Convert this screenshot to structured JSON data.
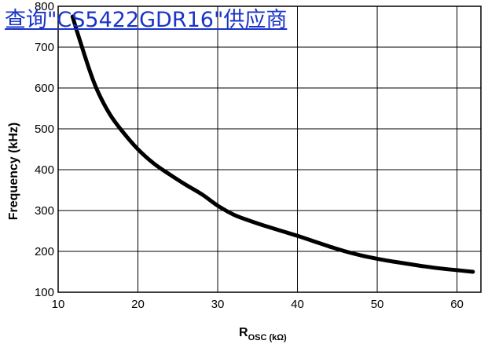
{
  "overlay": {
    "link_text": "查询\"CS5422GDR16\"供应商",
    "link_color": "#1a33c8"
  },
  "chart_data": {
    "type": "line",
    "xlabel_main": "R",
    "xlabel_sub": "OSC (kΩ)",
    "ylabel": "Frequency (kHz)",
    "xlim": [
      10,
      63
    ],
    "ylim": [
      100,
      800
    ],
    "xticks": [
      10,
      20,
      30,
      40,
      50,
      60
    ],
    "yticks": [
      100,
      200,
      300,
      400,
      500,
      600,
      700,
      800
    ],
    "grid": true,
    "series": [
      {
        "color": "#000000",
        "x": [
          11.8,
          12.5,
          14,
          15,
          16.5,
          18,
          20,
          22,
          24,
          26,
          28,
          30,
          32,
          34,
          36,
          38,
          40,
          42,
          44,
          46,
          48,
          50,
          52,
          54,
          56,
          58,
          60,
          62
        ],
        "y": [
          775,
          730,
          640,
          590,
          535,
          495,
          450,
          415,
          388,
          363,
          340,
          312,
          290,
          275,
          262,
          250,
          238,
          225,
          212,
          200,
          190,
          182,
          175,
          169,
          163,
          158,
          154,
          150
        ]
      }
    ]
  }
}
